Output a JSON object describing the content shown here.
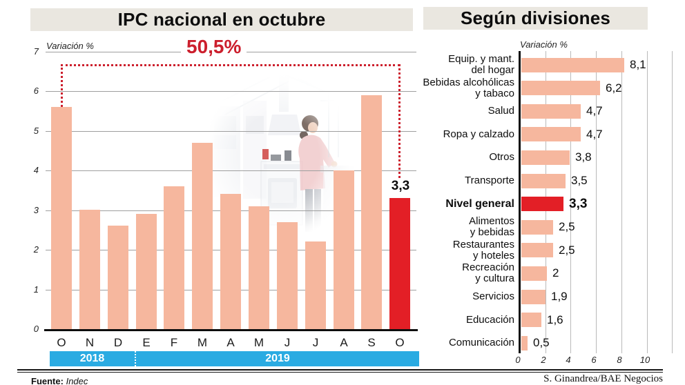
{
  "credit": "S. Ginandrea/BAE Negocios",
  "colors": {
    "bar": "#f6b79e",
    "highlight_red": "#e31f26",
    "annotation_red": "#cc1f2d",
    "year_band_cyan": "#2aabe2",
    "title_band_gray": "#eae7e0"
  },
  "left_chart": {
    "title": "IPC nacional en octubre",
    "axis_label": "Variación %",
    "annotation": "50,5%",
    "highlight_value_label": "3,3",
    "y_ticks": [
      0,
      1,
      2,
      3,
      4,
      5,
      6,
      7
    ],
    "bars": [
      {
        "month": "O",
        "value": 5.6
      },
      {
        "month": "N",
        "value": 3.0
      },
      {
        "month": "D",
        "value": 2.6
      },
      {
        "month": "E",
        "value": 2.9
      },
      {
        "month": "F",
        "value": 3.6
      },
      {
        "month": "M",
        "value": 4.7
      },
      {
        "month": "A",
        "value": 3.4
      },
      {
        "month": "M",
        "value": 3.1
      },
      {
        "month": "J",
        "value": 2.7
      },
      {
        "month": "J",
        "value": 2.2
      },
      {
        "month": "A",
        "value": 4.0
      },
      {
        "month": "S",
        "value": 5.9
      },
      {
        "month": "O",
        "value": 3.3,
        "highlight": true
      }
    ],
    "year_bands": [
      {
        "label": "2018",
        "months": 3
      },
      {
        "label": "2019",
        "months": 10
      }
    ],
    "source_label": "Fuente:",
    "source_value": "Indec"
  },
  "right_chart": {
    "title": "Según divisiones",
    "axis_label": "Variación %",
    "x_ticks": [
      0,
      2,
      4,
      6,
      8,
      10
    ],
    "rows": [
      {
        "label": [
          "Equip. y mant.",
          "del hogar"
        ],
        "value": 8.1,
        "display": "8,1"
      },
      {
        "label": [
          "Bebidas alcohólicas",
          "y tabaco"
        ],
        "value": 6.2,
        "display": "6,2"
      },
      {
        "label": [
          "Salud"
        ],
        "value": 4.7,
        "display": "4,7"
      },
      {
        "label": [
          "Ropa y calzado"
        ],
        "value": 4.7,
        "display": "4,7"
      },
      {
        "label": [
          "Otros"
        ],
        "value": 3.8,
        "display": "3,8"
      },
      {
        "label": [
          "Transporte"
        ],
        "value": 3.5,
        "display": "3,5"
      },
      {
        "label": [
          "Nivel general"
        ],
        "value": 3.3,
        "display": "3,3",
        "highlight": true
      },
      {
        "label": [
          "Alimentos",
          "y bebidas"
        ],
        "value": 2.5,
        "display": "2,5"
      },
      {
        "label": [
          "Restaurantes",
          "y hoteles"
        ],
        "value": 2.5,
        "display": "2,5"
      },
      {
        "label": [
          "Recreación",
          "y cultura"
        ],
        "value": 2,
        "display": "2"
      },
      {
        "label": [
          "Servicios"
        ],
        "value": 1.9,
        "display": "1,9"
      },
      {
        "label": [
          "Educación"
        ],
        "value": 1.6,
        "display": "1,6"
      },
      {
        "label": [
          "Comunicación"
        ],
        "value": 0.5,
        "display": "0,5"
      }
    ]
  },
  "chart_data": [
    {
      "type": "bar",
      "title": "IPC nacional en octubre",
      "ylabel": "Variación %",
      "ylim": [
        0,
        7
      ],
      "grid": true,
      "categories": [
        "O",
        "N",
        "D",
        "E",
        "F",
        "M",
        "A",
        "M",
        "J",
        "J",
        "A",
        "S",
        "O"
      ],
      "category_year_groups": [
        {
          "year": "2018",
          "count": 3
        },
        {
          "year": "2019",
          "count": 10
        }
      ],
      "values": [
        5.6,
        3.0,
        2.6,
        2.9,
        3.6,
        4.7,
        3.4,
        3.1,
        2.7,
        2.2,
        4.0,
        5.9,
        3.3
      ],
      "highlight_index": 12,
      "highlight_label": "3,3",
      "annotation": "50,5%",
      "annotation_note": "dotted bracket from first bar (O 2018) to last bar (O 2019)",
      "source": "Indec"
    },
    {
      "type": "bar",
      "orientation": "horizontal",
      "title": "Según divisiones",
      "xlabel": "Variación %",
      "xlim": [
        0,
        10
      ],
      "grid": true,
      "categories": [
        "Equip. y mant. del hogar",
        "Bebidas alcohólicas y tabaco",
        "Salud",
        "Ropa y calzado",
        "Otros",
        "Transporte",
        "Nivel general",
        "Alimentos y bebidas",
        "Restaurantes y hoteles",
        "Recreación y cultura",
        "Servicios",
        "Educación",
        "Comunicación"
      ],
      "values": [
        8.1,
        6.2,
        4.7,
        4.7,
        3.8,
        3.5,
        3.3,
        2.5,
        2.5,
        2,
        1.9,
        1.6,
        0.5
      ],
      "highlight_category": "Nivel general"
    }
  ]
}
